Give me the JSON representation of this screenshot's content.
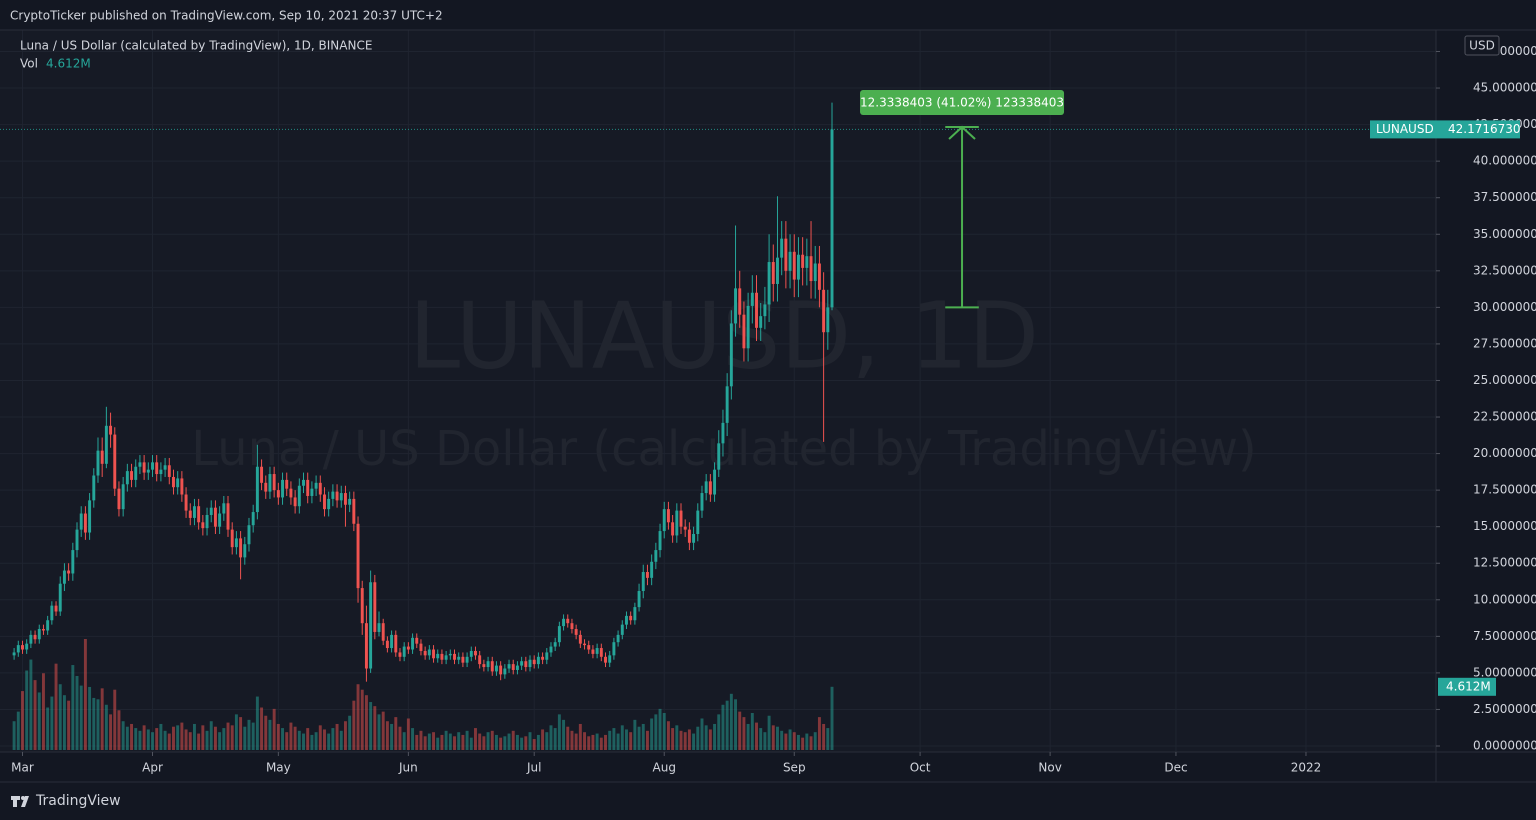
{
  "header": "CryptoTicker published on TradingView.com, Sep 10, 2021 20:37 UTC+2",
  "footer": "TradingView",
  "chart_data": {
    "type": "candlestick",
    "title": "Luna / US Dollar (calculated by TradingView), 1D, BINANCE",
    "symbol": "LUNAUSD",
    "currency": "USD",
    "watermark": [
      "LUNAUSD, 1D",
      "Luna / US Dollar (calculated by TradingView)"
    ],
    "up_color": "#26a69a",
    "down_color": "#ef5350",
    "grid": true,
    "xlim": [
      -2.5,
      337
    ],
    "xticks": [
      {
        "value": 0,
        "label": "Mar"
      },
      {
        "value": 31,
        "label": "Apr"
      },
      {
        "value": 61,
        "label": "May"
      },
      {
        "value": 92,
        "label": "Jun"
      },
      {
        "value": 122,
        "label": "Jul"
      },
      {
        "value": 153,
        "label": "Aug"
      },
      {
        "value": 184,
        "label": "Sep"
      },
      {
        "value": 214,
        "label": "Oct"
      },
      {
        "value": 245,
        "label": "Nov"
      },
      {
        "value": 275,
        "label": "Dec"
      },
      {
        "value": 306,
        "label": "2022"
      }
    ],
    "ylim": [
      -0.41,
      48.97
    ],
    "yticks": [
      {
        "value": 0,
        "label": "0.0000000"
      },
      {
        "value": 2.5,
        "label": "2.5000000"
      },
      {
        "value": 5,
        "label": "5.0000000"
      },
      {
        "value": 7.5,
        "label": "7.5000000"
      },
      {
        "value": 10,
        "label": "10.0000000"
      },
      {
        "value": 12.5,
        "label": "12.5000000"
      },
      {
        "value": 15,
        "label": "15.0000000"
      },
      {
        "value": 17.5,
        "label": "17.5000000"
      },
      {
        "value": 20,
        "label": "20.0000000"
      },
      {
        "value": 22.5,
        "label": "22.5000000"
      },
      {
        "value": 25,
        "label": "25.0000000"
      },
      {
        "value": 27.5,
        "label": "27.5000000"
      },
      {
        "value": 30,
        "label": "30.0000000"
      },
      {
        "value": 32.5,
        "label": "32.5000000"
      },
      {
        "value": 35,
        "label": "35.0000000"
      },
      {
        "value": 37.5,
        "label": "37.5000000"
      },
      {
        "value": 40,
        "label": "40.0000000"
      },
      {
        "value": 42.5,
        "label": "42.5000000"
      },
      {
        "value": 45,
        "label": "45.0000000"
      },
      {
        "value": 47.5,
        "label": "47.5000000"
      }
    ],
    "last_close_label": "42.1716730",
    "measure": {
      "label": "12.3338403 (41.02%) 123338403",
      "from": 30,
      "to": 42.3338403,
      "x": [
        220,
        228
      ]
    },
    "x": [
      -2,
      -1,
      0,
      1,
      2,
      3,
      4,
      5,
      6,
      7,
      8,
      9,
      10,
      11,
      12,
      13,
      14,
      15,
      16,
      17,
      18,
      19,
      20,
      21,
      22,
      23,
      24,
      25,
      26,
      27,
      28,
      29,
      30,
      31,
      32,
      33,
      34,
      35,
      36,
      37,
      38,
      39,
      40,
      41,
      42,
      43,
      44,
      45,
      46,
      47,
      48,
      49,
      50,
      51,
      52,
      53,
      54,
      55,
      56,
      57,
      58,
      59,
      60,
      61,
      62,
      63,
      64,
      65,
      66,
      67,
      68,
      69,
      70,
      71,
      72,
      73,
      74,
      75,
      76,
      77,
      78,
      79,
      80,
      81,
      82,
      83,
      84,
      85,
      86,
      87,
      88,
      89,
      90,
      91,
      92,
      93,
      94,
      95,
      96,
      97,
      98,
      99,
      100,
      101,
      102,
      103,
      104,
      105,
      106,
      107,
      108,
      109,
      110,
      111,
      112,
      113,
      114,
      115,
      116,
      117,
      118,
      119,
      120,
      121,
      122,
      123,
      124,
      125,
      126,
      127,
      128,
      129,
      130,
      131,
      132,
      133,
      134,
      135,
      136,
      137,
      138,
      139,
      140,
      141,
      142,
      143,
      144,
      145,
      146,
      147,
      148,
      149,
      150,
      151,
      152,
      153,
      154,
      155,
      156,
      157,
      158,
      159,
      160,
      161,
      162,
      163,
      164,
      165,
      166,
      167,
      168,
      169,
      170,
      171,
      172,
      173,
      174,
      175,
      176,
      177,
      178,
      179,
      180,
      181,
      182,
      183,
      184,
      185,
      186,
      187,
      188,
      189,
      190,
      191,
      192,
      193
    ],
    "open": [
      6.2,
      6.4,
      6.9,
      6.6,
      7.0,
      7.6,
      7.3,
      8.0,
      7.9,
      8.6,
      9.6,
      9.2,
      11.1,
      12.0,
      11.8,
      13.4,
      14.8,
      15.9,
      14.6,
      16.8,
      18.5,
      20.2,
      19.3,
      21.9,
      21.3,
      17.6,
      16.2,
      17.9,
      18.8,
      18.2,
      19.1,
      19.4,
      18.7,
      18.9,
      19.4,
      18.6,
      18.9,
      19.2,
      18.4,
      17.7,
      18.3,
      17.2,
      16.1,
      15.6,
      16.4,
      15.3,
      14.9,
      15.8,
      16.3,
      15.0,
      15.9,
      16.6,
      14.8,
      13.6,
      14.2,
      12.9,
      13.8,
      15.1,
      16.0,
      19.1,
      18.0,
      17.4,
      18.6,
      17.5,
      17.0,
      18.2,
      17.6,
      17.0,
      16.4,
      17.8,
      18.2,
      17.1,
      17.6,
      18.0,
      17.2,
      16.2,
      16.9,
      17.4,
      16.8,
      17.3,
      16.5,
      16.9,
      15.2,
      10.8,
      8.4,
      5.3,
      11.2,
      7.8,
      8.4,
      7.2,
      6.7,
      7.6,
      6.4,
      6.1,
      6.8,
      6.6,
      7.4,
      7.0,
      6.5,
      6.2,
      6.6,
      6.0,
      6.3,
      5.9,
      6.2,
      6.3,
      5.9,
      6.1,
      5.7,
      6.1,
      6.5,
      6.2,
      5.6,
      5.4,
      5.8,
      5.1,
      5.5,
      4.9,
      5.3,
      5.6,
      5.2,
      5.5,
      5.8,
      5.4,
      5.9,
      5.6,
      6.1,
      5.9,
      6.4,
      6.8,
      7.1,
      8.2,
      8.7,
      8.4,
      8.0,
      7.6,
      7.0,
      6.9,
      6.6,
      6.3,
      6.7,
      6.1,
      5.7,
      6.2,
      7.1,
      7.6,
      8.3,
      8.9,
      8.6,
      9.5,
      10.6,
      11.9,
      11.5,
      12.6,
      13.4,
      14.7,
      16.2,
      15.3,
      14.4,
      16.1,
      15.0,
      14.8,
      13.9,
      14.5,
      16.1,
      17.3,
      18.1,
      17.2,
      18.9,
      20.7,
      22.1,
      24.6,
      28.9,
      31.3,
      29.5,
      27.2,
      30.1,
      31.0,
      28.6,
      29.4,
      30.2,
      33.1,
      31.6,
      33.4,
      34.7,
      32.5,
      33.8,
      31.9,
      33.6,
      32.7,
      33.5,
      31.8,
      33.0,
      31.2,
      28.3,
      30.0
    ],
    "high": [
      6.7,
      7.2,
      7.2,
      7.3,
      7.9,
      7.9,
      8.3,
      8.3,
      8.9,
      9.9,
      9.9,
      11.6,
      12.5,
      12.5,
      13.9,
      15.3,
      16.4,
      16.4,
      17.3,
      19.0,
      21.1,
      21.1,
      23.2,
      22.8,
      21.8,
      18.1,
      18.4,
      19.3,
      19.3,
      19.6,
      19.9,
      19.9,
      19.4,
      19.9,
      19.9,
      19.4,
      19.7,
      19.7,
      18.9,
      18.8,
      18.8,
      17.7,
      16.6,
      16.9,
      16.9,
      15.8,
      16.3,
      16.8,
      16.8,
      16.4,
      17.1,
      17.1,
      15.3,
      14.7,
      14.7,
      14.3,
      15.6,
      16.5,
      20.6,
      19.6,
      18.5,
      19.1,
      19.1,
      18.0,
      18.7,
      18.7,
      18.1,
      17.5,
      18.3,
      18.7,
      18.7,
      18.1,
      18.5,
      18.5,
      17.7,
      17.4,
      17.9,
      17.9,
      17.8,
      17.8,
      17.4,
      17.4,
      15.7,
      11.3,
      9.6,
      12.0,
      11.7,
      9.2,
      8.7,
      7.5,
      7.9,
      7.9,
      6.7,
      7.1,
      7.1,
      7.7,
      7.7,
      7.3,
      6.8,
      6.9,
      6.9,
      6.6,
      6.6,
      6.5,
      6.6,
      6.6,
      6.4,
      6.4,
      6.4,
      6.8,
      6.8,
      6.5,
      5.9,
      6.1,
      6.1,
      5.8,
      5.8,
      5.6,
      5.9,
      5.9,
      5.8,
      6.1,
      6.1,
      6.2,
      6.2,
      6.4,
      6.4,
      6.7,
      7.1,
      7.4,
      8.5,
      9.0,
      9.0,
      8.7,
      8.3,
      7.9,
      7.3,
      7.2,
      6.9,
      7.0,
      7.0,
      6.4,
      6.5,
      7.4,
      7.9,
      8.6,
      9.2,
      9.2,
      9.8,
      11.1,
      12.4,
      12.4,
      13.1,
      13.9,
      15.2,
      16.7,
      16.7,
      15.8,
      16.6,
      16.6,
      15.5,
      15.3,
      15.0,
      16.6,
      17.8,
      18.6,
      18.6,
      19.4,
      21.6,
      23.0,
      25.5,
      29.8,
      35.6,
      32.5,
      30.4,
      31.0,
      32.2,
      32.2,
      30.3,
      31.4,
      35.0,
      34.3,
      37.6,
      35.9,
      35.9,
      35.0,
      35.0,
      34.8,
      34.8,
      34.7,
      35.9,
      34.2,
      34.2,
      32.4,
      31.2,
      44.0
    ],
    "low": [
      5.9,
      6.1,
      6.3,
      6.3,
      6.7,
      7.0,
      7.0,
      7.6,
      7.6,
      8.3,
      8.9,
      8.9,
      10.6,
      11.3,
      11.3,
      12.9,
      14.3,
      14.1,
      14.1,
      16.3,
      18.0,
      18.4,
      19.0,
      20.4,
      17.1,
      15.7,
      15.7,
      17.4,
      17.7,
      17.7,
      18.6,
      18.2,
      18.2,
      18.4,
      18.1,
      18.1,
      18.4,
      17.9,
      17.2,
      17.2,
      16.7,
      15.6,
      15.1,
      15.1,
      14.8,
      14.4,
      14.4,
      15.3,
      14.5,
      14.5,
      15.4,
      14.3,
      13.1,
      13.1,
      11.4,
      12.4,
      13.3,
      14.6,
      15.5,
      17.5,
      16.9,
      16.9,
      17.0,
      16.5,
      16.5,
      17.1,
      16.5,
      15.9,
      15.9,
      17.3,
      16.6,
      16.6,
      17.1,
      16.7,
      15.7,
      15.7,
      16.4,
      16.3,
      16.3,
      15.0,
      16.0,
      14.7,
      9.8,
      7.6,
      4.4,
      5.0,
      7.3,
      7.5,
      6.9,
      6.4,
      6.4,
      6.1,
      5.8,
      5.8,
      6.3,
      6.3,
      6.7,
      6.2,
      5.9,
      5.9,
      5.7,
      5.7,
      5.6,
      5.6,
      5.9,
      5.6,
      5.6,
      5.4,
      5.4,
      5.8,
      5.9,
      5.3,
      5.1,
      5.1,
      4.8,
      4.8,
      4.5,
      4.6,
      5.0,
      4.9,
      4.9,
      5.2,
      5.1,
      5.1,
      5.3,
      5.3,
      5.6,
      5.6,
      6.1,
      6.5,
      6.8,
      7.9,
      8.1,
      7.7,
      7.3,
      6.7,
      6.6,
      6.3,
      6.0,
      6.0,
      5.8,
      5.4,
      5.4,
      5.9,
      6.8,
      7.3,
      8.0,
      8.3,
      8.3,
      9.2,
      10.1,
      11.0,
      11.0,
      12.1,
      12.9,
      14.2,
      14.8,
      13.9,
      13.9,
      14.5,
      14.3,
      13.4,
      13.4,
      14.0,
      15.6,
      16.8,
      16.7,
      16.7,
      18.4,
      19.8,
      21.2,
      23.7,
      28.0,
      28.6,
      26.3,
      26.3,
      28.9,
      27.7,
      27.7,
      28.5,
      29.0,
      30.4,
      30.4,
      32.2,
      31.3,
      31.3,
      30.7,
      30.7,
      31.5,
      31.5,
      30.6,
      30.6,
      30.0,
      20.8,
      27.1,
      29.8
    ],
    "close": [
      6.4,
      6.9,
      6.6,
      7.0,
      7.6,
      7.3,
      8.0,
      7.9,
      8.6,
      9.6,
      9.2,
      11.1,
      12.0,
      11.8,
      13.4,
      14.8,
      15.9,
      14.6,
      16.8,
      18.5,
      20.2,
      19.3,
      21.9,
      21.3,
      17.6,
      16.2,
      17.9,
      18.8,
      18.2,
      19.1,
      19.4,
      18.7,
      18.9,
      19.4,
      18.6,
      18.9,
      19.2,
      18.4,
      17.7,
      18.3,
      17.2,
      16.1,
      15.6,
      16.4,
      15.3,
      14.9,
      15.8,
      16.3,
      15.0,
      15.9,
      16.6,
      14.8,
      13.6,
      14.2,
      12.9,
      13.8,
      15.1,
      16.0,
      19.1,
      18.0,
      17.4,
      18.6,
      17.5,
      17.0,
      18.2,
      17.6,
      17.0,
      16.4,
      17.8,
      18.2,
      17.1,
      17.6,
      18.0,
      17.2,
      16.2,
      16.9,
      17.4,
      16.8,
      17.3,
      16.5,
      16.9,
      15.2,
      10.8,
      8.4,
      5.3,
      11.2,
      7.8,
      8.4,
      7.2,
      6.7,
      7.6,
      6.4,
      6.1,
      6.8,
      6.6,
      7.4,
      7.0,
      6.5,
      6.2,
      6.6,
      6.0,
      6.3,
      5.9,
      6.2,
      6.3,
      5.9,
      6.1,
      5.7,
      6.1,
      6.5,
      6.2,
      5.6,
      5.4,
      5.8,
      5.1,
      5.5,
      4.9,
      5.3,
      5.6,
      5.2,
      5.5,
      5.8,
      5.4,
      5.9,
      5.6,
      6.1,
      5.9,
      6.4,
      6.8,
      7.1,
      8.2,
      8.7,
      8.4,
      8.0,
      7.6,
      7.0,
      6.9,
      6.6,
      6.3,
      6.7,
      6.1,
      5.7,
      6.2,
      7.1,
      7.6,
      8.3,
      8.9,
      8.6,
      9.5,
      10.6,
      11.9,
      11.5,
      12.6,
      13.4,
      14.7,
      16.2,
      15.3,
      14.4,
      16.1,
      15.0,
      14.8,
      13.9,
      14.5,
      16.1,
      17.3,
      18.1,
      17.2,
      18.9,
      20.7,
      22.1,
      24.6,
      28.9,
      31.3,
      29.5,
      27.2,
      30.1,
      31.0,
      28.6,
      29.4,
      30.2,
      33.1,
      31.6,
      33.4,
      34.7,
      32.5,
      33.8,
      31.9,
      33.6,
      32.7,
      33.5,
      31.8,
      33.0,
      31.2,
      28.3,
      30.0,
      42.171673
    ],
    "volume": {
      "name": "Vol",
      "last_label": "4.612M",
      "values": [
        2.1,
        2.8,
        4.3,
        5.8,
        6.6,
        5.1,
        4.2,
        5.6,
        3.1,
        3.9,
        6.3,
        4.8,
        4.0,
        3.6,
        6.2,
        5.4,
        4.7,
        8.1,
        4.6,
        3.8,
        3.7,
        4.5,
        3.3,
        2.6,
        4.4,
        2.9,
        2.1,
        1.7,
        1.9,
        1.6,
        1.4,
        1.8,
        1.5,
        1.3,
        1.6,
        1.9,
        1.4,
        1.2,
        1.7,
        1.8,
        2.0,
        1.5,
        1.3,
        1.9,
        1.2,
        1.8,
        1.4,
        2.1,
        1.7,
        1.3,
        1.6,
        2.0,
        1.8,
        2.6,
        2.4,
        1.7,
        2.2,
        2.0,
        3.9,
        3.1,
        2.5,
        2.2,
        3.0,
        1.9,
        1.6,
        1.3,
        2.0,
        1.7,
        1.4,
        1.2,
        1.6,
        1.1,
        1.3,
        1.8,
        1.5,
        1.2,
        1.6,
        1.9,
        1.4,
        2.1,
        2.5,
        3.6,
        4.8,
        4.4,
        4.0,
        3.5,
        3.2,
        2.6,
        2.8,
        2.1,
        1.9,
        2.4,
        1.7,
        1.3,
        2.3,
        1.6,
        1.1,
        1.4,
        1.0,
        1.2,
        1.3,
        0.9,
        1.1,
        1.4,
        1.2,
        1.0,
        1.3,
        1.1,
        1.4,
        0.9,
        1.6,
        1.2,
        1.0,
        1.3,
        1.4,
        1.1,
        0.9,
        1.0,
        1.2,
        1.4,
        1.1,
        0.9,
        1.0,
        1.3,
        0.8,
        1.1,
        1.5,
        1.3,
        1.8,
        1.6,
        2.6,
        2.2,
        1.7,
        1.4,
        1.2,
        1.9,
        1.3,
        1.0,
        1.1,
        1.2,
        0.9,
        1.1,
        1.4,
        1.6,
        1.2,
        1.8,
        1.5,
        1.3,
        2.2,
        1.7,
        1.9,
        1.4,
        2.3,
        2.6,
        3.0,
        2.7,
        2.1,
        1.6,
        1.8,
        1.4,
        1.3,
        1.5,
        1.2,
        1.7,
        2.3,
        1.8,
        1.5,
        1.9,
        2.6,
        3.3,
        3.6,
        4.1,
        3.7,
        2.8,
        2.4,
        1.9,
        2.7,
        2.0,
        1.6,
        1.3,
        2.5,
        1.8,
        1.7,
        1.4,
        1.2,
        1.5,
        1.3,
        1.1,
        0.9,
        1.2,
        1.0,
        1.3,
        2.4,
        1.9,
        1.6,
        4.612
      ]
    }
  }
}
